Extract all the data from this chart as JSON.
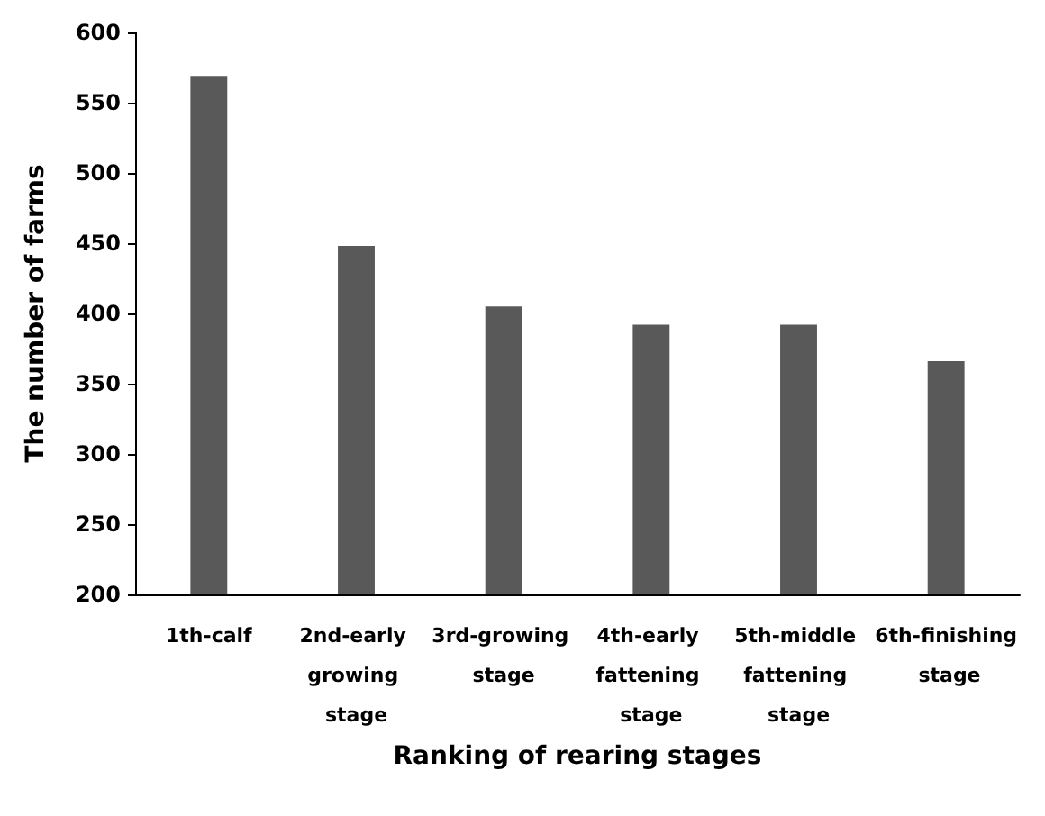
{
  "chart_data": {
    "type": "bar",
    "xlabel": "Ranking of rearing stages",
    "ylabel": "The number of farms",
    "categories": [
      "1th-calf",
      "2nd-early growing stage",
      "3rd-growing stage",
      "4th-early fattening stage",
      "5th-middle fattening stage",
      "6th-finishing stage"
    ],
    "values": [
      569,
      448,
      405,
      392,
      392,
      366
    ],
    "color": "#595959",
    "ylim": [
      200,
      600
    ],
    "yticks": [
      200,
      250,
      300,
      350,
      400,
      450,
      500,
      550,
      600
    ],
    "grid": false
  }
}
